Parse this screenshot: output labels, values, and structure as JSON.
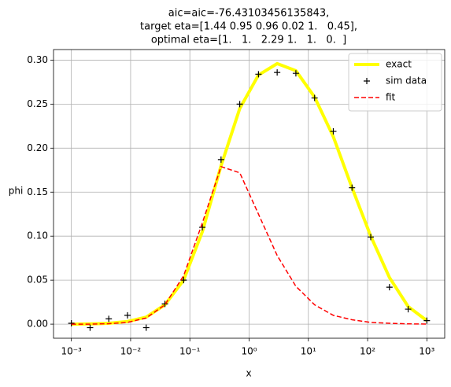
{
  "chart_data": {
    "type": "line",
    "title": [
      "aic=aic=-76.43103456135843,",
      "target eta=[1.44 0.95 0.96 0.02 1.   0.45],",
      "optimal eta=[1.   1.   2.29 1.   1.   0.  ]"
    ],
    "xlabel": "x",
    "ylabel": "phi",
    "xscale": "log",
    "grid": true,
    "legend": "upper right",
    "xlim": [
      0.0005,
      2000
    ],
    "ylim": [
      -0.016,
      0.312
    ],
    "xticks": [
      {
        "value": 0.001,
        "label": "10⁻³"
      },
      {
        "value": 0.01,
        "label": "10⁻²"
      },
      {
        "value": 0.1,
        "label": "10⁻¹"
      },
      {
        "value": 1,
        "label": "10⁰"
      },
      {
        "value": 10,
        "label": "10¹"
      },
      {
        "value": 100,
        "label": "10²"
      },
      {
        "value": 1000,
        "label": "10³"
      }
    ],
    "yticks": [
      {
        "value": 0,
        "label": "0.00"
      },
      {
        "value": 0.05,
        "label": "0.05"
      },
      {
        "value": 0.1,
        "label": "0.10"
      },
      {
        "value": 0.15,
        "label": "0.15"
      },
      {
        "value": 0.2,
        "label": "0.20"
      },
      {
        "value": 0.25,
        "label": "0.25"
      },
      {
        "value": 0.3,
        "label": "0.30"
      }
    ],
    "x": [
      0.001,
      0.00207,
      0.00428,
      0.00886,
      0.01833,
      0.03793,
      0.07848,
      0.1624,
      0.336,
      0.695,
      1.438,
      2.976,
      6.158,
      12.74,
      26.37,
      54.56,
      112.9,
      233.6,
      483.3,
      1000
    ],
    "series": [
      {
        "name": "exact",
        "color": "#ffff00",
        "linestyle": "solid",
        "linewidth": 4,
        "values": [
          0.0,
          0.0003,
          0.001,
          0.003,
          0.008,
          0.022,
          0.05,
          0.105,
          0.18,
          0.245,
          0.283,
          0.296,
          0.288,
          0.258,
          0.213,
          0.155,
          0.1,
          0.053,
          0.02,
          0.004
        ]
      },
      {
        "name": "sim data",
        "color": "#000000",
        "linestyle": "none",
        "marker": "+",
        "values": [
          0.001,
          -0.004,
          0.006,
          0.01,
          -0.004,
          0.023,
          0.05,
          0.11,
          0.187,
          0.25,
          0.284,
          0.286,
          0.285,
          0.257,
          0.219,
          0.155,
          0.099,
          0.042,
          0.017,
          0.004
        ]
      },
      {
        "name": "fit",
        "color": "#ff0000",
        "linestyle": "dashed",
        "linewidth": 1.5,
        "values": [
          0.0,
          0.0,
          0.0005,
          0.002,
          0.007,
          0.022,
          0.055,
          0.115,
          0.179,
          0.172,
          0.125,
          0.078,
          0.043,
          0.022,
          0.01,
          0.005,
          0.002,
          0.001,
          0.0003,
          0.0001
        ]
      }
    ]
  }
}
